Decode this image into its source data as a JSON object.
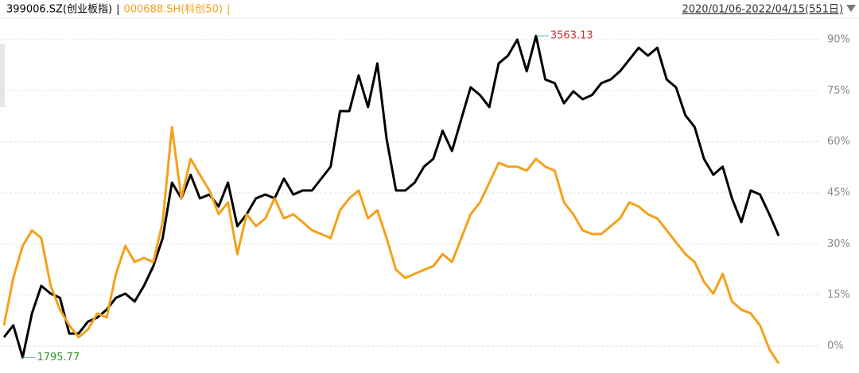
{
  "chart_data": {
    "type": "line",
    "date_range": "2020/01/06-2022/04/15(551日)",
    "separator": "|",
    "categories": [
      null,
      null,
      null,
      null,
      null,
      null,
      null,
      null,
      null,
      null,
      null,
      null,
      null,
      null,
      null,
      null,
      null,
      null,
      null,
      null,
      null,
      null,
      null,
      null,
      null,
      null,
      null,
      null,
      null,
      null,
      null,
      null,
      null,
      null,
      null,
      null,
      null,
      null,
      null,
      null,
      null,
      null,
      null,
      null,
      null,
      null,
      null,
      null,
      null,
      null,
      null,
      null,
      null,
      null,
      null,
      null,
      null,
      null,
      null,
      null,
      null,
      null,
      null,
      null,
      null,
      null,
      null,
      null,
      null,
      null,
      null,
      null,
      null,
      null,
      null,
      null,
      null,
      null,
      null,
      null,
      null,
      null,
      null,
      null
    ],
    "series": [
      {
        "name": "399006.SZ(创业板指)",
        "color": "#000000",
        "values": [
          2.6,
          6.1,
          -3.3,
          9.6,
          17.7,
          15.4,
          14.2,
          3.7,
          3.7,
          7.2,
          8.4,
          10.7,
          14.2,
          15.4,
          13.1,
          17.7,
          23.5,
          31.7,
          48.0,
          43.4,
          50.3,
          43.4,
          44.5,
          41.0,
          48.0,
          35.2,
          38.7,
          43.4,
          44.5,
          43.4,
          49.2,
          44.5,
          45.7,
          45.7,
          49.2,
          52.7,
          69.0,
          69.0,
          79.5,
          70.2,
          83.0,
          60.8,
          45.7,
          45.7,
          48.0,
          52.7,
          55.0,
          63.2,
          57.3,
          66.7,
          76.0,
          73.7,
          70.2,
          83.0,
          85.3,
          90.0,
          80.7,
          91.1,
          78.3,
          77.2,
          71.3,
          74.8,
          72.5,
          73.7,
          77.2,
          78.3,
          80.7,
          84.1,
          87.6,
          85.3,
          87.6,
          78.3,
          76.0,
          67.8,
          64.3,
          55.0,
          50.3,
          52.7,
          43.4,
          36.4,
          45.7,
          44.5,
          38.7,
          32.4
        ]
      },
      {
        "name": "000688.SH(科创50)",
        "color": "#f5a01a",
        "values": [
          6.1,
          20.0,
          29.4,
          34.0,
          31.7,
          17.7,
          10.7,
          6.1,
          2.6,
          4.9,
          9.6,
          8.4,
          21.2,
          29.4,
          24.7,
          25.9,
          24.7,
          36.4,
          64.3,
          43.4,
          55.0,
          50.3,
          45.7,
          38.7,
          42.2,
          27.0,
          38.7,
          35.2,
          37.5,
          43.4,
          37.5,
          38.7,
          36.4,
          34.0,
          32.9,
          31.7,
          39.9,
          43.4,
          45.7,
          37.5,
          39.9,
          31.7,
          22.4,
          20.0,
          21.2,
          22.4,
          23.5,
          27.0,
          24.7,
          31.7,
          38.7,
          42.2,
          48.0,
          53.8,
          52.7,
          52.7,
          51.5,
          55.0,
          52.7,
          51.5,
          42.2,
          38.7,
          34.0,
          32.9,
          32.9,
          35.2,
          37.5,
          42.2,
          41.0,
          38.7,
          37.5,
          34.0,
          30.5,
          27.0,
          24.7,
          18.9,
          15.4,
          21.2,
          13.1,
          10.7,
          9.6,
          6.1,
          -0.9,
          -5.1
        ]
      }
    ],
    "annotations": [
      {
        "text": "3563.13",
        "color": "#d0302f"
      },
      {
        "text": "1795.77",
        "color": "#2e9a2e"
      }
    ],
    "ylim": [
      -7.9,
      96.5
    ],
    "yticks": [
      {
        "value": 0,
        "label": "0%"
      },
      {
        "value": 15,
        "label": "15%"
      },
      {
        "value": 30,
        "label": "30%"
      },
      {
        "value": 45,
        "label": "45%"
      },
      {
        "value": 60,
        "label": "60%"
      },
      {
        "value": 75,
        "label": "75%"
      },
      {
        "value": 90,
        "label": "90%"
      }
    ],
    "grid": true
  }
}
